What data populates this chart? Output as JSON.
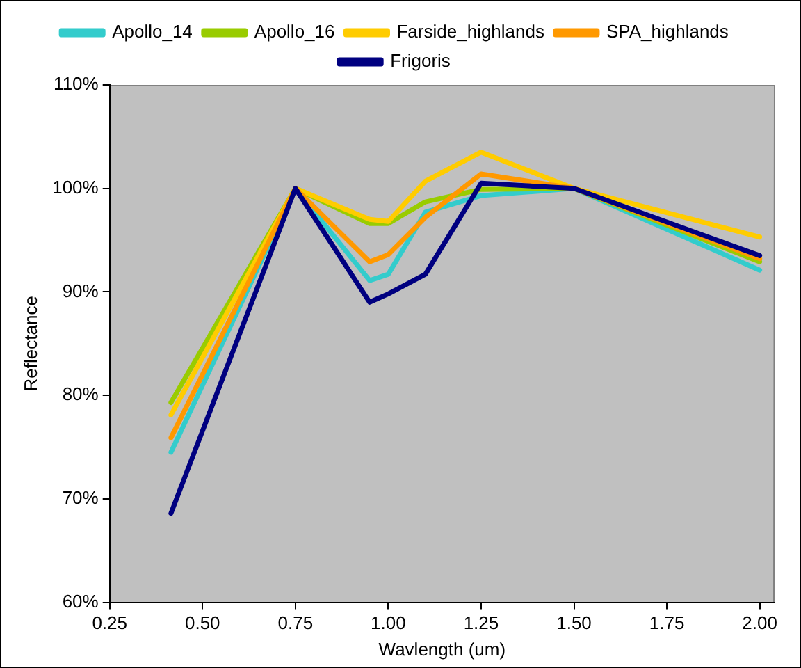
{
  "chart_data": {
    "type": "line",
    "xlabel": "Wavlength (um)",
    "ylabel": "Reflectance",
    "x": [
      0.415,
      0.75,
      0.95,
      1.0,
      1.1,
      1.25,
      1.5,
      2.0
    ],
    "xlim": [
      0.25,
      2.04
    ],
    "xticks": [
      {
        "value": 0.25,
        "label": "0.25"
      },
      {
        "value": 0.5,
        "label": "0.50"
      },
      {
        "value": 0.75,
        "label": "0.75"
      },
      {
        "value": 1.0,
        "label": "1.00"
      },
      {
        "value": 1.25,
        "label": "1.25"
      },
      {
        "value": 1.5,
        "label": "1.50"
      },
      {
        "value": 1.75,
        "label": "1.75"
      },
      {
        "value": 2.0,
        "label": "2.00"
      }
    ],
    "ylim": [
      60,
      110
    ],
    "yticks": [
      {
        "value": 60,
        "label": "60%"
      },
      {
        "value": 70,
        "label": "70%"
      },
      {
        "value": 80,
        "label": "80%"
      },
      {
        "value": 90,
        "label": "90%"
      },
      {
        "value": 100,
        "label": "100%"
      },
      {
        "value": 110,
        "label": "110%"
      }
    ],
    "series": [
      {
        "name": "Apollo_14",
        "color": "#33cccc",
        "values": [
          74.5,
          100,
          91.1,
          91.7,
          97.7,
          99.3,
          100,
          92.1
        ]
      },
      {
        "name": "Apollo_16",
        "color": "#99cc00",
        "values": [
          79.3,
          100,
          96.6,
          96.6,
          98.7,
          99.9,
          100,
          92.9
        ]
      },
      {
        "name": "Farside_highlands",
        "color": "#ffcc00",
        "values": [
          78.1,
          100,
          97.0,
          96.8,
          100.7,
          103.5,
          100,
          95.3
        ]
      },
      {
        "name": "SPA_highlands",
        "color": "#ff9900",
        "values": [
          75.9,
          100,
          92.9,
          93.6,
          97.2,
          101.4,
          100,
          93.2
        ]
      },
      {
        "name": "Frigoris",
        "color": "#000080",
        "values": [
          68.6,
          100,
          89.0,
          89.8,
          91.7,
          100.5,
          100,
          93.5
        ]
      }
    ],
    "grid": false,
    "legend": "top",
    "marker": "none",
    "line_style": "solid"
  }
}
